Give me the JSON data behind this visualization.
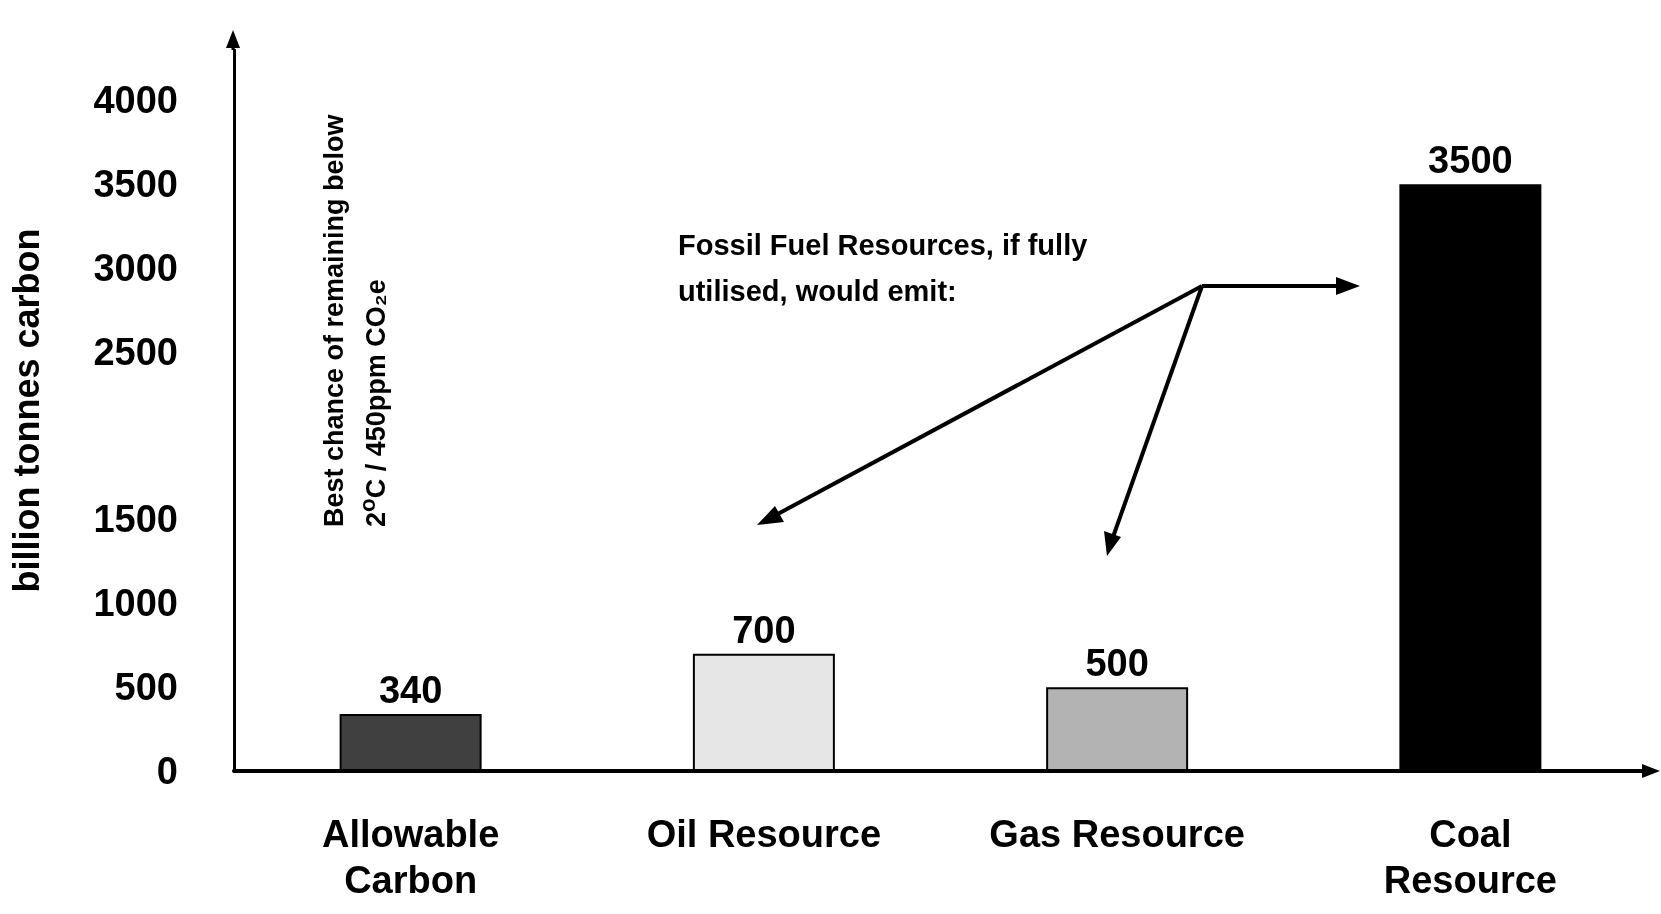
{
  "chart_data": {
    "type": "bar",
    "ylabel": "billion tonnes carbon",
    "categories": [
      "Allowable\nCarbon",
      "Oil Resource",
      "Gas Resource",
      "Coal\nResource"
    ],
    "values": [
      340,
      700,
      500,
      3500
    ],
    "colors": [
      "#404040",
      "#e6e6e6",
      "#b3b3b3",
      "#000000"
    ],
    "ylim": [
      0,
      4300
    ],
    "yticks": [
      0,
      500,
      1000,
      1500,
      2500,
      3000,
      3500,
      4000
    ],
    "grid": false,
    "data_labels": true,
    "annotations": [
      "Best chance of remaining below 2$^{o}$C / 450ppm CO₂e",
      "Fossil Fuel Resources, if fully utilised, would emit:"
    ]
  }
}
